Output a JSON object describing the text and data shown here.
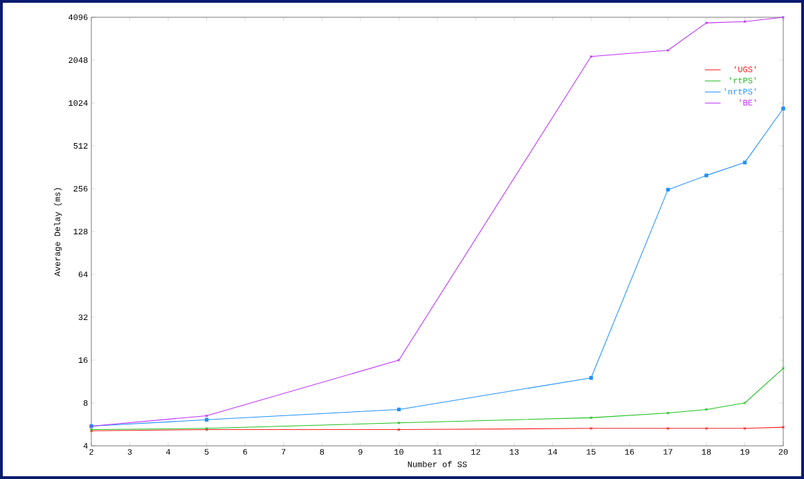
{
  "chart_data": {
    "type": "line",
    "xlabel": "Number of SS",
    "ylabel": "Average Delay (ms)",
    "x": [
      2,
      5,
      10,
      15,
      17,
      18,
      19,
      20
    ],
    "series": [
      {
        "name": "'UGS'",
        "color": "#ff2020",
        "marker": "cross",
        "values": [
          5.1,
          5.2,
          5.2,
          5.3,
          5.3,
          5.3,
          5.3,
          5.4
        ]
      },
      {
        "name": "'rtPS'",
        "color": "#20c020",
        "marker": "cross",
        "values": [
          5.2,
          5.3,
          5.8,
          6.3,
          6.8,
          7.2,
          8.0,
          14
        ]
      },
      {
        "name": "'nrtPS'",
        "color": "#2090ff",
        "marker": "square",
        "values": [
          5.5,
          6.1,
          7.2,
          12,
          252,
          317,
          391,
          936
        ]
      },
      {
        "name": "'BE'",
        "color": "#c030ff",
        "marker": "cross",
        "values": [
          5.5,
          6.5,
          16,
          2170,
          2400,
          3740,
          3820,
          4096
        ]
      }
    ],
    "log": "y",
    "xlim": [
      2,
      20
    ],
    "xticks": [
      2,
      3,
      4,
      5,
      6,
      7,
      8,
      9,
      10,
      11,
      12,
      13,
      14,
      15,
      16,
      17,
      18,
      19,
      20
    ],
    "ylim": [
      4,
      4096
    ],
    "yticks": [
      4,
      8,
      16,
      32,
      64,
      128,
      256,
      512,
      1024,
      2048,
      4096
    ],
    "legend": "top right",
    "grid": false,
    "line_style": "solid"
  }
}
